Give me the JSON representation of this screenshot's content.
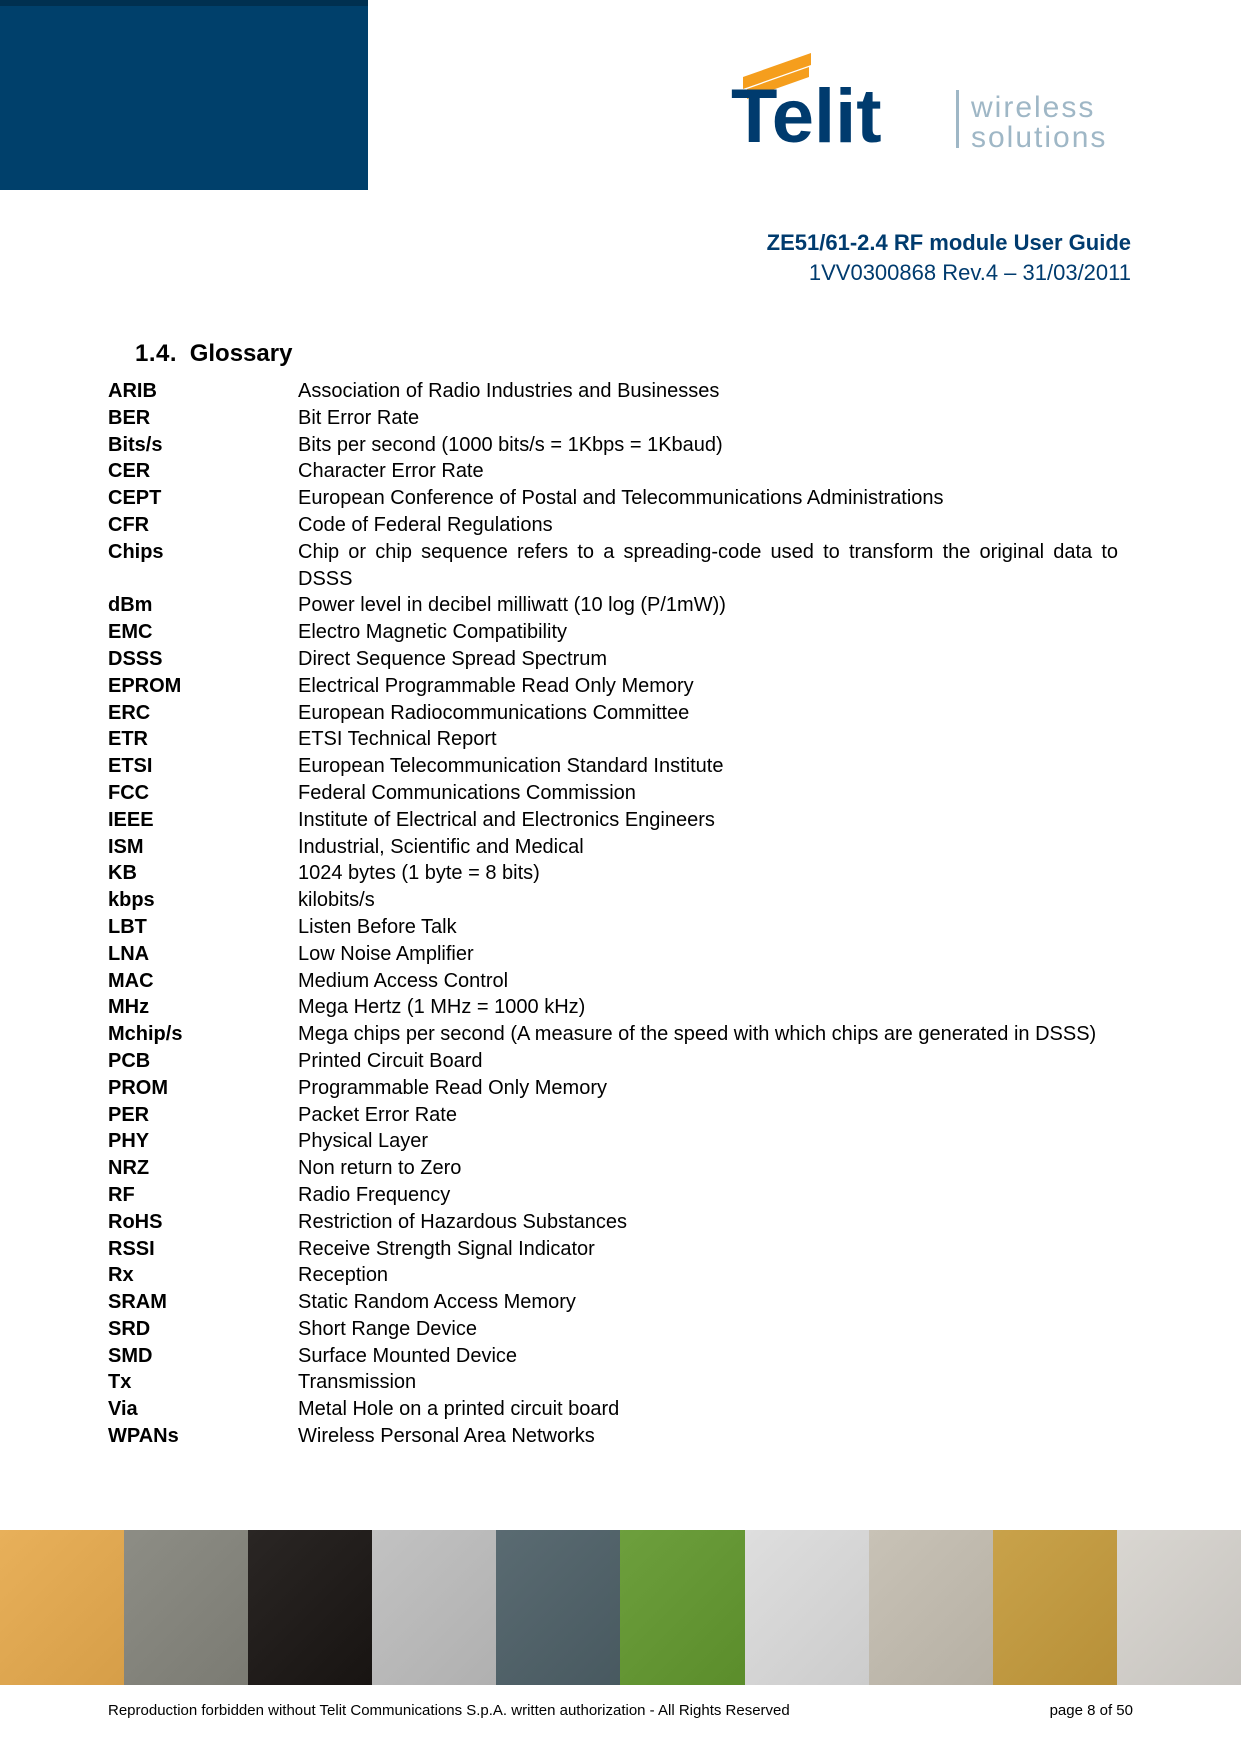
{
  "doc": {
    "title_line1": "ZE51/61-2.4 RF module User Guide",
    "title_line2": "1VV0300868 Rev.4 – 31/03/2011",
    "title_color": "#003b6e"
  },
  "logo": {
    "brand": "Telit",
    "tagline1": "wireless",
    "tagline2": "solutions",
    "primary_color": "#003b6e",
    "accent_color": "#f59e1d",
    "tagline_color": "#9fb7c6"
  },
  "section": {
    "number": "1.4.",
    "title": "Glossary"
  },
  "glossary": [
    {
      "term": "ARIB",
      "def": "Association of Radio Industries and Businesses"
    },
    {
      "term": "BER",
      "def": "Bit Error Rate"
    },
    {
      "term": "Bits/s",
      "def": "Bits per second (1000 bits/s = 1Kbps = 1Kbaud)"
    },
    {
      "term": "CER",
      "def": "Character Error Rate"
    },
    {
      "term": "CEPT",
      "def": "European Conference of Postal and Telecommunications Administrations"
    },
    {
      "term": "CFR",
      "def": "Code of Federal Regulations"
    },
    {
      "term": "Chips",
      "def": "Chip or chip sequence refers to a spreading-code used to transform the original data to DSSS"
    },
    {
      "term": "dBm",
      "def": "Power level in decibel milliwatt (10 log (P/1mW))"
    },
    {
      "term": "EMC",
      "def": "Electro Magnetic Compatibility"
    },
    {
      "term": "DSSS",
      "def": "Direct Sequence Spread Spectrum"
    },
    {
      "term": "EPROM",
      "def": "Electrical Programmable Read Only Memory"
    },
    {
      "term": "ERC",
      "def": "European Radiocommunications Committee"
    },
    {
      "term": "ETR",
      "def": "ETSI Technical Report"
    },
    {
      "term": "ETSI",
      "def": "European Telecommunication Standard Institute"
    },
    {
      "term": "FCC",
      "def": "Federal Communications Commission"
    },
    {
      "term": "IEEE",
      "def": "Institute of Electrical and Electronics Engineers"
    },
    {
      "term": "ISM",
      "def": "Industrial, Scientific and Medical"
    },
    {
      "term": "KB",
      "def": "1024 bytes (1 byte = 8 bits)"
    },
    {
      "term": "kbps",
      "def": "kilobits/s"
    },
    {
      "term": "LBT",
      "def": "Listen Before Talk"
    },
    {
      "term": "LNA",
      "def": "Low Noise Amplifier"
    },
    {
      "term": "MAC",
      "def": "Medium Access Control"
    },
    {
      "term": "MHz",
      "def": "Mega Hertz (1 MHz = 1000 kHz)"
    },
    {
      "term": "Mchip/s",
      "def": "Mega chips per second (A measure of the speed with which chips are generated in DSSS)"
    },
    {
      "term": "PCB",
      "def": "Printed Circuit Board"
    },
    {
      "term": "PROM",
      "def": "Programmable Read Only Memory"
    },
    {
      "term": "PER",
      "def": "Packet Error Rate"
    },
    {
      "term": "PHY",
      "def": "Physical Layer"
    },
    {
      "term": "NRZ",
      "def": "Non return to Zero"
    },
    {
      "term": "RF",
      "def": "Radio Frequency"
    },
    {
      "term": "RoHS",
      "def": "Restriction of Hazardous Substances"
    },
    {
      "term": "RSSI",
      "def": "Receive Strength Signal Indicator"
    },
    {
      "term": "Rx",
      "def": "Reception"
    },
    {
      "term": "SRAM",
      "def": "Static Random Access Memory"
    },
    {
      "term": "SRD",
      "def": "Short Range Device"
    },
    {
      "term": "SMD",
      "def": "Surface Mounted Device"
    },
    {
      "term": "Tx",
      "def": "Transmission"
    },
    {
      "term": "Via",
      "def": "Metal Hole on a printed circuit board"
    },
    {
      "term": "WPANs",
      "def": "Wireless Personal Area Networks"
    }
  ],
  "footer": {
    "copyright": "Reproduction forbidden without Telit Communications S.p.A. written authorization - All Rights Reserved",
    "page": "page 8 of 50",
    "band_colors": [
      "#e8b05a",
      "#8d8d85",
      "#2a2624",
      "#c2c2c2",
      "#5a6b72",
      "#6d9f3d",
      "#dedede",
      "#c8c2b6",
      "#c9a24a",
      "#d9d6d1"
    ]
  }
}
